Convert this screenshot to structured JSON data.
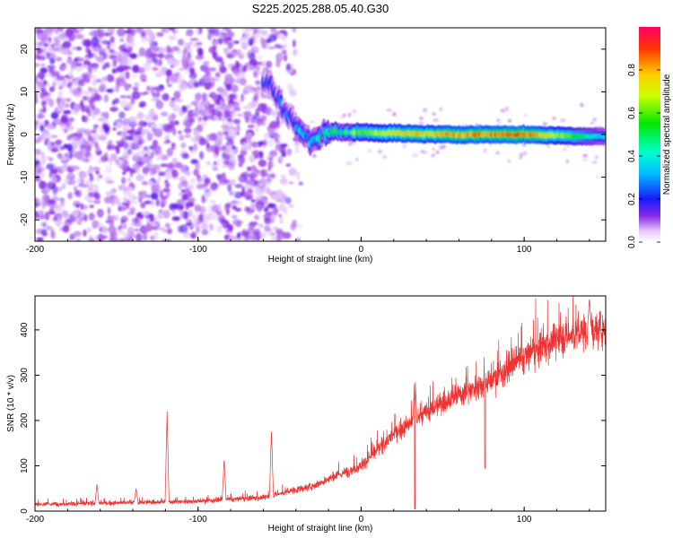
{
  "title": "S225.2025.288.05.40.G30",
  "chart_data": [
    {
      "type": "heatmap",
      "xlabel": "Height of straight line (km)",
      "ylabel": "Frequency (Hz)",
      "xlim": [
        -200,
        150
      ],
      "ylim": [
        -25,
        25
      ],
      "xticks": [
        -200,
        -100,
        0,
        100
      ],
      "yticks": [
        -20,
        -10,
        0,
        10,
        20
      ],
      "colorbar": {
        "label": "Normalized spectral amplitude",
        "range": [
          0,
          1
        ],
        "ticks": [
          0.0,
          0.2,
          0.4,
          0.6,
          0.8
        ]
      },
      "features": {
        "noise_region_x": [
          -200,
          -60
        ],
        "noise_amplitude": 0.15,
        "tone_frequency_track": [
          {
            "x": -55,
            "freq": 12
          },
          {
            "x": -50,
            "freq": 8
          },
          {
            "x": -45,
            "freq": 4
          },
          {
            "x": -40,
            "freq": 2
          },
          {
            "x": -35,
            "freq": 0
          },
          {
            "x": -30,
            "freq": -1
          },
          {
            "x": -20,
            "freq": 0.5
          },
          {
            "x": 0,
            "freq": 0.5
          },
          {
            "x": 50,
            "freq": 0
          },
          {
            "x": 100,
            "freq": 0
          },
          {
            "x": 150,
            "freq": -0.5
          }
        ],
        "tone_amplitude_track": [
          {
            "x": -55,
            "amp": 0.2
          },
          {
            "x": -30,
            "amp": 0.35
          },
          {
            "x": 0,
            "amp": 0.6
          },
          {
            "x": 20,
            "amp": 0.75
          },
          {
            "x": 100,
            "amp": 0.9
          },
          {
            "x": 150,
            "amp": 0.35
          }
        ]
      }
    },
    {
      "type": "line",
      "xlabel": "Height of straight line (km)",
      "ylabel": "SNR (10 * v/v)",
      "xlim": [
        -200,
        150
      ],
      "ylim": [
        0,
        475
      ],
      "xticks": [
        -200,
        -100,
        0,
        100
      ],
      "yticks": [
        0,
        100,
        200,
        300,
        400
      ],
      "color": "#ee3333",
      "trend": [
        {
          "x": -200,
          "snr": 15
        },
        {
          "x": -150,
          "snr": 18
        },
        {
          "x": -100,
          "snr": 22
        },
        {
          "x": -60,
          "snr": 30
        },
        {
          "x": -30,
          "snr": 55
        },
        {
          "x": 0,
          "snr": 100
        },
        {
          "x": 20,
          "snr": 170
        },
        {
          "x": 50,
          "snr": 240
        },
        {
          "x": 80,
          "snr": 290
        },
        {
          "x": 100,
          "snr": 340
        },
        {
          "x": 120,
          "snr": 380
        },
        {
          "x": 150,
          "snr": 405
        }
      ],
      "spikes": [
        {
          "x": -119,
          "snr": 220
        },
        {
          "x": -84,
          "snr": 115
        },
        {
          "x": -55,
          "snr": 180
        },
        {
          "x": -162,
          "snr": 60
        },
        {
          "x": -138,
          "snr": 50
        },
        {
          "x": 33,
          "snr": 310
        },
        {
          "x": 140,
          "snr": 470
        }
      ],
      "dips": [
        {
          "x": 33,
          "snr": 5
        },
        {
          "x": 76,
          "snr": 95
        }
      ]
    }
  ]
}
